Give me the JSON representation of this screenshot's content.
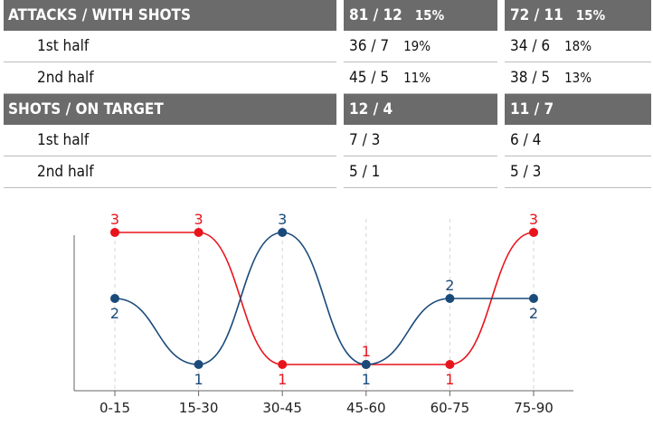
{
  "table": {
    "attacks": {
      "label": "ATTACKS / WITH SHOTS",
      "team1": {
        "value": "81 / 12",
        "pct": "15%"
      },
      "team2": {
        "value": "72 / 11",
        "pct": "15%"
      },
      "rows": [
        {
          "label": "1st half",
          "team1": {
            "value": "36 / 7",
            "pct": "19%"
          },
          "team2": {
            "value": "34 / 6",
            "pct": "18%"
          }
        },
        {
          "label": "2nd half",
          "team1": {
            "value": "45 / 5",
            "pct": "11%"
          },
          "team2": {
            "value": "38 / 5",
            "pct": "13%"
          }
        }
      ]
    },
    "shots": {
      "label": "SHOTS / ON TARGET",
      "team1": {
        "value": "12 / 4"
      },
      "team2": {
        "value": "11 / 7"
      },
      "rows": [
        {
          "label": "1st half",
          "team1": {
            "value": "7 / 3"
          },
          "team2": {
            "value": "6 / 4"
          }
        },
        {
          "label": "2nd half",
          "team1": {
            "value": "5 / 1"
          },
          "team2": {
            "value": "5 / 3"
          }
        }
      ]
    }
  },
  "chart_data": {
    "type": "line",
    "categories": [
      "0-15",
      "15-30",
      "30-45",
      "45-60",
      "60-75",
      "75-90"
    ],
    "series": [
      {
        "values": [
          3,
          3,
          1,
          1,
          1,
          3
        ],
        "color": "#e8141c"
      },
      {
        "values": [
          2,
          1,
          3,
          1,
          2,
          2
        ],
        "color": "#1a4a7a"
      }
    ],
    "ylim": [
      1,
      3
    ],
    "grid": "vertical dashed",
    "title": "",
    "xlabel": "",
    "ylabel": ""
  }
}
